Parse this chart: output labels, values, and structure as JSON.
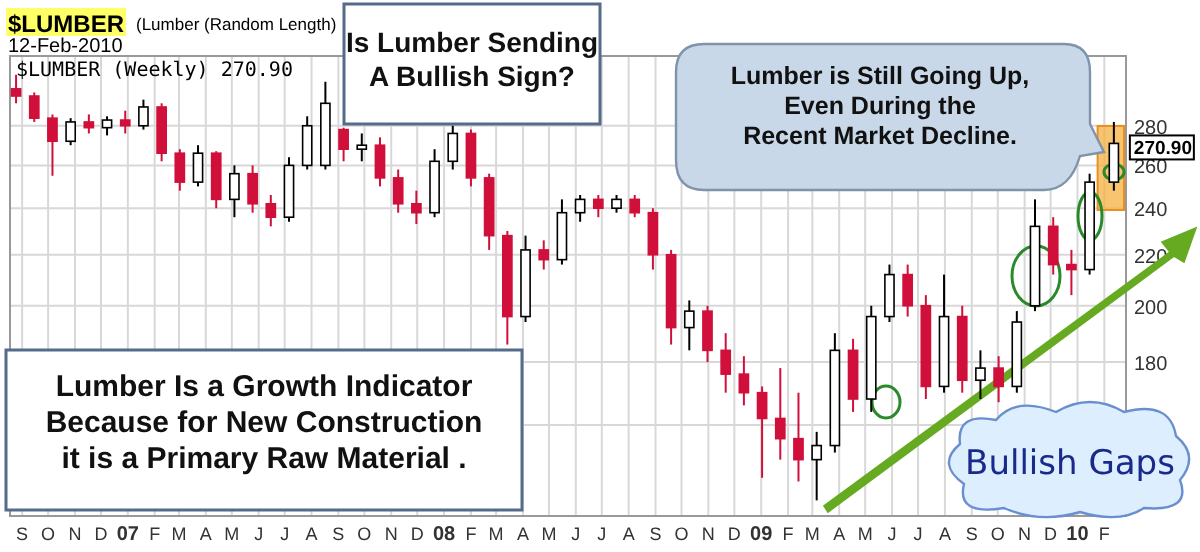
{
  "chart_data": {
    "type": "candlestick",
    "title": "$LUMBER",
    "subtitle": "(Lumber (Random Length)",
    "x": [
      "2006-08-25",
      "2006-09-15",
      "2006-10-06",
      "2006-10-27",
      "2006-11-17",
      "2006-12-08",
      "2006-12-29",
      "2007-01-19",
      "2007-02-09",
      "2007-03-02",
      "2007-03-23",
      "2007-04-13",
      "2007-05-04",
      "2007-05-25",
      "2007-06-15",
      "2007-07-06",
      "2007-07-27",
      "2007-08-17",
      "2007-09-07",
      "2007-09-28",
      "2007-10-19",
      "2007-11-09",
      "2007-11-30",
      "2007-12-21",
      "2008-01-11",
      "2008-02-01",
      "2008-02-22",
      "2008-03-14",
      "2008-04-04",
      "2008-04-25",
      "2008-05-16",
      "2008-06-06",
      "2008-06-27",
      "2008-07-18",
      "2008-08-08",
      "2008-08-29",
      "2008-09-19",
      "2008-10-10",
      "2008-10-31",
      "2008-11-21",
      "2008-12-12",
      "2009-01-02",
      "2009-01-23",
      "2009-02-13",
      "2009-03-06",
      "2009-03-27",
      "2009-04-17",
      "2009-05-08",
      "2009-05-29",
      "2009-06-19",
      "2009-07-10",
      "2009-07-31",
      "2009-08-21",
      "2009-09-11",
      "2009-10-02",
      "2009-10-23",
      "2009-11-13",
      "2009-12-04",
      "2009-12-25",
      "2010-01-15",
      "2010-02-12"
    ],
    "ohlc": [
      [
        300,
        308,
        292,
        296
      ],
      [
        296,
        298,
        282,
        284
      ],
      [
        284,
        286,
        255,
        272
      ],
      [
        272,
        284,
        270,
        282
      ],
      [
        282,
        286,
        276,
        279
      ],
      [
        279,
        285,
        275,
        283
      ],
      [
        283,
        288,
        276,
        280
      ],
      [
        280,
        294,
        278,
        290
      ],
      [
        290,
        292,
        262,
        266
      ],
      [
        266,
        268,
        248,
        252
      ],
      [
        252,
        270,
        250,
        266
      ],
      [
        266,
        267,
        240,
        244
      ],
      [
        244,
        260,
        236,
        256
      ],
      [
        256,
        260,
        238,
        242
      ],
      [
        242,
        246,
        232,
        236
      ],
      [
        236,
        264,
        234,
        260
      ],
      [
        260,
        285,
        258,
        280
      ],
      [
        260,
        304,
        258,
        292
      ],
      [
        278,
        279,
        262,
        268
      ],
      [
        268,
        276,
        262,
        270
      ],
      [
        270,
        274,
        250,
        254
      ],
      [
        254,
        258,
        238,
        242
      ],
      [
        242,
        248,
        233,
        238
      ],
      [
        238,
        268,
        236,
        262
      ],
      [
        262,
        280,
        258,
        276
      ],
      [
        276,
        278,
        250,
        254
      ],
      [
        254,
        256,
        222,
        228
      ],
      [
        228,
        230,
        186,
        196
      ],
      [
        196,
        228,
        194,
        222
      ],
      [
        222,
        226,
        214,
        218
      ],
      [
        218,
        244,
        216,
        238
      ],
      [
        238,
        246,
        234,
        244
      ],
      [
        244,
        246,
        236,
        240
      ],
      [
        240,
        246,
        238,
        244
      ],
      [
        244,
        246,
        236,
        238
      ],
      [
        238,
        240,
        214,
        220
      ],
      [
        220,
        222,
        186,
        192
      ],
      [
        192,
        202,
        184,
        198
      ],
      [
        198,
        200,
        180,
        184
      ],
      [
        184,
        190,
        170,
        176
      ],
      [
        176,
        182,
        166,
        170
      ],
      [
        170,
        172,
        145,
        162
      ],
      [
        162,
        178,
        150,
        156
      ],
      [
        156,
        170,
        144,
        150
      ],
      [
        150,
        158,
        139,
        154
      ],
      [
        154,
        190,
        152,
        184
      ],
      [
        184,
        188,
        164,
        168
      ],
      [
        168,
        200,
        164,
        196
      ],
      [
        196,
        216,
        194,
        212
      ],
      [
        212,
        216,
        196,
        200
      ],
      [
        200,
        204,
        168,
        172
      ],
      [
        172,
        212,
        170,
        196
      ],
      [
        196,
        200,
        170,
        174
      ],
      [
        174,
        184,
        168,
        178
      ],
      [
        178,
        182,
        167,
        172
      ],
      [
        172,
        198,
        170,
        194
      ],
      [
        200,
        244,
        198,
        232
      ],
      [
        232,
        236,
        212,
        216
      ],
      [
        216,
        222,
        204,
        214
      ],
      [
        214,
        256,
        212,
        252
      ],
      [
        252,
        282,
        248,
        270.9
      ]
    ],
    "xlim": [
      "2006-08-18",
      "2010-02-26"
    ],
    "xticks": [
      {
        "value": "2006-09-01",
        "label": "S"
      },
      {
        "value": "2006-10-01",
        "label": "O"
      },
      {
        "value": "2006-11-01",
        "label": "N"
      },
      {
        "value": "2006-12-01",
        "label": "D"
      },
      {
        "value": "2007-01-01",
        "label": "07"
      },
      {
        "value": "2007-02-01",
        "label": "F"
      },
      {
        "value": "2007-03-01",
        "label": "M"
      },
      {
        "value": "2007-04-01",
        "label": "A"
      },
      {
        "value": "2007-05-01",
        "label": "M"
      },
      {
        "value": "2007-06-01",
        "label": "J"
      },
      {
        "value": "2007-07-01",
        "label": "J"
      },
      {
        "value": "2007-08-01",
        "label": "A"
      },
      {
        "value": "2007-09-01",
        "label": "S"
      },
      {
        "value": "2007-10-01",
        "label": "O"
      },
      {
        "value": "2007-11-01",
        "label": "N"
      },
      {
        "value": "2007-12-01",
        "label": "D"
      },
      {
        "value": "2008-01-01",
        "label": "08"
      },
      {
        "value": "2008-02-01",
        "label": "F"
      },
      {
        "value": "2008-03-01",
        "label": "M"
      },
      {
        "value": "2008-04-01",
        "label": "A"
      },
      {
        "value": "2008-05-01",
        "label": "M"
      },
      {
        "value": "2008-06-01",
        "label": "J"
      },
      {
        "value": "2008-07-01",
        "label": "J"
      },
      {
        "value": "2008-08-01",
        "label": "A"
      },
      {
        "value": "2008-09-01",
        "label": "S"
      },
      {
        "value": "2008-10-01",
        "label": "O"
      },
      {
        "value": "2008-11-01",
        "label": "N"
      },
      {
        "value": "2008-12-01",
        "label": "D"
      },
      {
        "value": "2009-01-01",
        "label": "09"
      },
      {
        "value": "2009-02-01",
        "label": "F"
      },
      {
        "value": "2009-03-01",
        "label": "M"
      },
      {
        "value": "2009-04-01",
        "label": "A"
      },
      {
        "value": "2009-05-01",
        "label": "M"
      },
      {
        "value": "2009-06-01",
        "label": "J"
      },
      {
        "value": "2009-07-01",
        "label": "J"
      },
      {
        "value": "2009-08-01",
        "label": "A"
      },
      {
        "value": "2009-09-01",
        "label": "S"
      },
      {
        "value": "2009-10-01",
        "label": "O"
      },
      {
        "value": "2009-11-01",
        "label": "N"
      },
      {
        "value": "2009-12-01",
        "label": "D"
      },
      {
        "value": "2010-01-01",
        "label": "10"
      },
      {
        "value": "2010-02-01",
        "label": "F"
      }
    ],
    "ylim": [
      135,
      319
    ],
    "log": "y",
    "yticks": [
      {
        "value": 160,
        "label": null
      },
      180,
      200,
      220,
      240,
      260,
      280
    ],
    "grid": true,
    "annotations": [
      "12-Feb-2010",
      "$LUMBER (Weekly) 270.90",
      "Is Lumber Sending\nA Bullish Sign?",
      "Lumber is Still Going Up,\nEven During the\nRecent Market Decline.",
      "Lumber Is a Growth Indicator\nBecause for New Construction\nit is a Primary Raw Material .",
      "Bullish Gaps",
      {
        "text": "270.90",
        "x": "2010-02-12",
        "y": 270.9
      }
    ]
  }
}
